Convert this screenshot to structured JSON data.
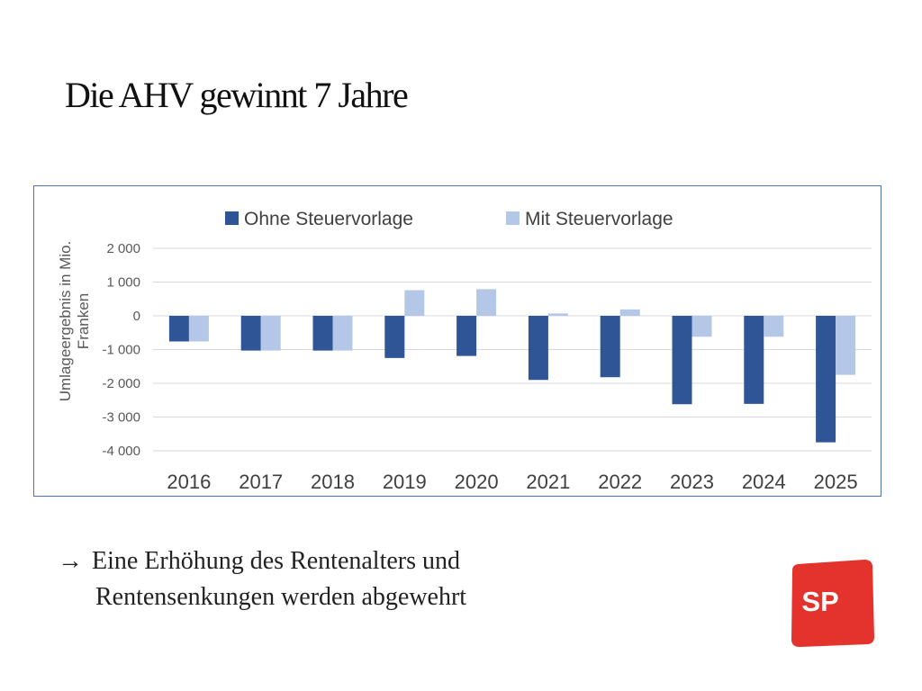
{
  "slide": {
    "title": "Die AHV gewinnt 7 Jahre",
    "bullet_arrow": "→",
    "bullet_line1": "Eine Erhöhung des Rentenalters und",
    "bullet_line2": "Rentensenkungen werden abgewehrt",
    "logo_text": "SP",
    "logo_color": "#e4322d",
    "frame_color": "#4f74b8"
  },
  "chart_data": {
    "type": "bar",
    "title": "",
    "ylabel": "Umlageergebnis in Mio. Franken",
    "ylim": [
      -4000,
      2000
    ],
    "yticks": [
      2000,
      1000,
      0,
      -1000,
      -2000,
      -3000,
      -4000
    ],
    "ytick_labels": [
      "2 000",
      "1 000",
      "0",
      "-1 000",
      "-2 000",
      "-3 000",
      "-4 000"
    ],
    "grid": true,
    "legend_position": "top",
    "categories": [
      "2016",
      "2017",
      "2018",
      "2019",
      "2020",
      "2021",
      "2022",
      "2023",
      "2024",
      "2025"
    ],
    "series": [
      {
        "name": "Ohne Steuervorlage",
        "color": "#2f5597",
        "values": [
          -760,
          -1030,
          -1030,
          -1250,
          -1190,
          -1900,
          -1820,
          -2620,
          -2610,
          -3750
        ]
      },
      {
        "name": "Mit Steuervorlage",
        "color": "#b4c7e7",
        "values": [
          -760,
          -1030,
          -1030,
          760,
          790,
          70,
          190,
          -620,
          -620,
          -1750
        ]
      }
    ]
  }
}
